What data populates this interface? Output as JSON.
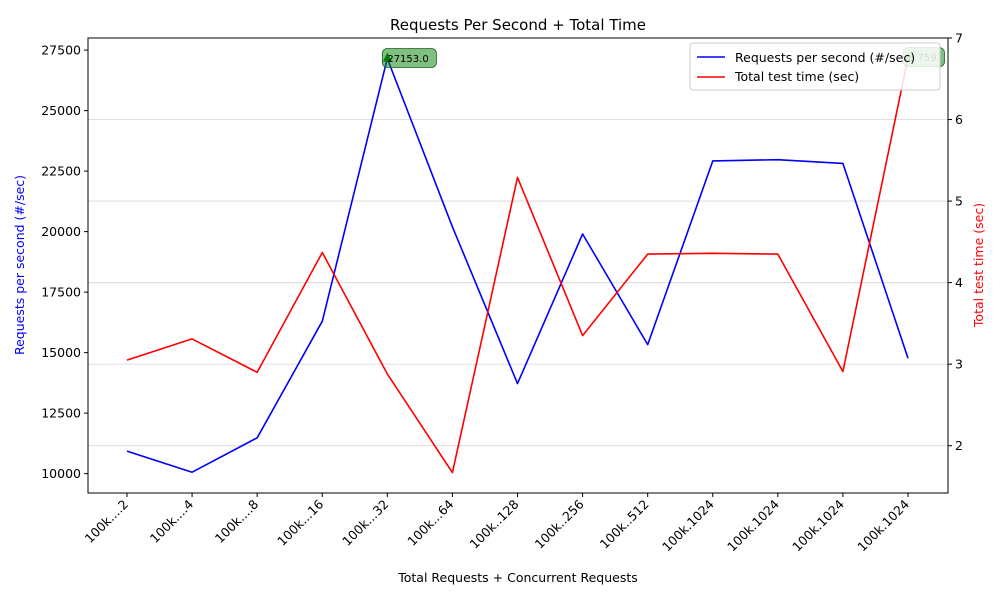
{
  "chart_data": {
    "type": "line",
    "title": "Requests Per Second + Total Time",
    "xlabel": "Total Requests + Concurrent Requests",
    "ylabel_left": "Requests per second (#/sec)",
    "ylabel_right": "Total test time (sec)",
    "categories": [
      "100k....2",
      "100k....4",
      "100k....8",
      "100k...16",
      "100k...32",
      "100k...64",
      "100k..128",
      "100k..256",
      "100k..512",
      "100k.1024",
      "100k.1024",
      "100k.1024",
      "100k.1024"
    ],
    "series": [
      {
        "name": "Requests per second (#/sec)",
        "axis": "left",
        "color": "#0000ff",
        "values": [
          10930,
          10060,
          11480,
          16300,
          27153.0,
          20200,
          13720,
          19900,
          15330,
          22920,
          22970,
          22820,
          14770
        ]
      },
      {
        "name": "Total test time (sec)",
        "axis": "right",
        "color": "#ff0000",
        "values": [
          3.05,
          3.31,
          2.9,
          4.37,
          2.88,
          1.67,
          5.29,
          3.35,
          4.35,
          4.36,
          4.35,
          2.91,
          6.759
        ]
      }
    ],
    "ylim_left": [
      9200,
      28000
    ],
    "yticks_left": [
      10000,
      12500,
      15000,
      17500,
      20000,
      22500,
      25000,
      27500
    ],
    "ylim_right": [
      1.42,
      7.0
    ],
    "yticks_right": [
      2,
      3,
      4,
      5,
      6,
      7
    ],
    "annotations": [
      {
        "text": "27153.0",
        "index": 4,
        "series": 0
      },
      {
        "text": "6.759",
        "index": 12,
        "series": 1
      }
    ],
    "annotation_color": "#008000",
    "grid": "horizontal, right axis",
    "legend_position": "top-right"
  }
}
